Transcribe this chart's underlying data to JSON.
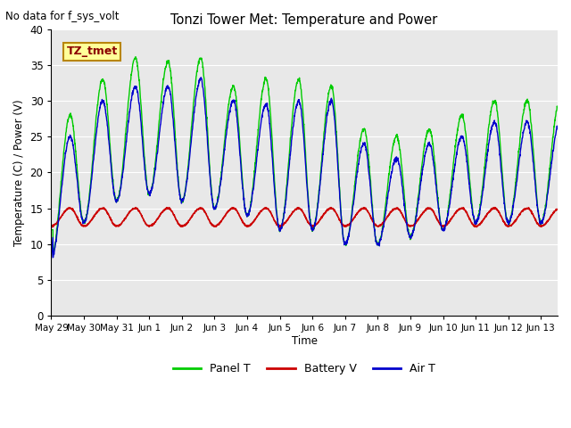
{
  "title": "Tonzi Tower Met: Temperature and Power",
  "ylabel": "Temperature (C) / Power (V)",
  "xlabel": "Time",
  "top_label": "No data for f_sys_volt",
  "legend_label": "TZ_tmet",
  "ylim": [
    0,
    40
  ],
  "yticks": [
    0,
    5,
    10,
    15,
    20,
    25,
    30,
    35,
    40
  ],
  "background_color": "#e8e8e8",
  "panel_color": "#00cc00",
  "battery_color": "#cc0000",
  "air_color": "#0000cc",
  "tick_labels": [
    "May 29",
    "May 30",
    "May 31",
    "Jun 1",
    "Jun 2",
    "Jun 3",
    "Jun 4",
    "Jun 5",
    "Jun 6",
    "Jun 7",
    "Jun 8",
    "Jun 9",
    "Jun 10",
    "Jun 11",
    "Jun 12",
    "Jun 13"
  ],
  "num_days": 15.5,
  "panel_day_peaks": [
    28,
    33,
    36,
    35.5,
    36,
    32,
    33,
    33,
    32,
    26,
    25,
    26,
    28,
    30
  ],
  "air_day_peaks": [
    25,
    30,
    32,
    32,
    33,
    30,
    29.5,
    30,
    30,
    24,
    22,
    24,
    25,
    27
  ],
  "night_trough": [
    8,
    13,
    16,
    17,
    16,
    15,
    14,
    12,
    12,
    10,
    10,
    11,
    12,
    13
  ],
  "batt_flat": 12.5,
  "batt_peak": 15.0
}
